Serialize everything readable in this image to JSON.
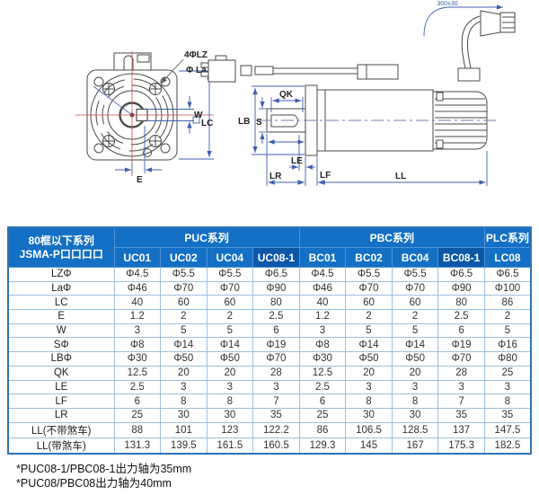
{
  "diagram": {
    "labels": {
      "bolt_holes": "4ΦLZ",
      "flange_dia": "Φ La",
      "w": "W",
      "lc": "LC",
      "e": "E",
      "qk": "QK",
      "lb": "LB",
      "s": "S",
      "le": "LE",
      "lr": "LR",
      "lf": "LF",
      "ll": "LL",
      "cable_length": "300±30"
    }
  },
  "table": {
    "corner": [
      "80框以下系列",
      "JSMA-P口口口口"
    ],
    "groups": [
      {
        "label": "PUC系列",
        "cols": [
          "UC01",
          "UC02",
          "UC04",
          "UC08-1"
        ]
      },
      {
        "label": "PBC系列",
        "cols": [
          "BC01",
          "BC02",
          "BC04",
          "BC08-1"
        ]
      },
      {
        "label": "PLC系列",
        "cols": [
          "LC08"
        ]
      }
    ],
    "highlight_col_indexes": [
      3,
      7
    ],
    "rows": [
      {
        "label": "LZΦ",
        "values": [
          "Φ4.5",
          "Φ5.5",
          "Φ5.5",
          "Φ6.5",
          "Φ4.5",
          "Φ5.5",
          "Φ5.5",
          "Φ6.5",
          "Φ6.5"
        ]
      },
      {
        "label": "LaΦ",
        "values": [
          "Φ46",
          "Φ70",
          "Φ70",
          "Φ90",
          "Φ46",
          "Φ70",
          "Φ70",
          "Φ90",
          "Φ100"
        ]
      },
      {
        "label": "LC",
        "values": [
          "40",
          "60",
          "60",
          "80",
          "40",
          "60",
          "60",
          "80",
          "86"
        ]
      },
      {
        "label": "E",
        "values": [
          "1.2",
          "2",
          "2",
          "2.5",
          "1.2",
          "2",
          "2",
          "2.5",
          "2"
        ]
      },
      {
        "label": "W",
        "values": [
          "3",
          "5",
          "5",
          "6",
          "3",
          "5",
          "5",
          "6",
          "5"
        ]
      },
      {
        "label": "SΦ",
        "values": [
          "Φ8",
          "Φ14",
          "Φ14",
          "Φ19",
          "Φ8",
          "Φ14",
          "Φ14",
          "Φ19",
          "Φ16"
        ]
      },
      {
        "label": "LBΦ",
        "values": [
          "Φ30",
          "Φ50",
          "Φ50",
          "Φ70",
          "Φ30",
          "Φ50",
          "Φ50",
          "Φ70",
          "Φ80"
        ]
      },
      {
        "label": "QK",
        "values": [
          "12.5",
          "20",
          "20",
          "28",
          "12.5",
          "20",
          "20",
          "28",
          "25"
        ]
      },
      {
        "label": "LE",
        "values": [
          "2.5",
          "3",
          "3",
          "3",
          "2.5",
          "3",
          "3",
          "3",
          "3"
        ]
      },
      {
        "label": "LF",
        "values": [
          "6",
          "8",
          "8",
          "7",
          "6",
          "8",
          "8",
          "7",
          "8"
        ]
      },
      {
        "label": "LR",
        "values": [
          "25",
          "30",
          "30",
          "35",
          "25",
          "30",
          "30",
          "35",
          "35"
        ]
      },
      {
        "label": "LL(不带煞车)",
        "values": [
          "88",
          "101",
          "123",
          "122.2",
          "86",
          "106.5",
          "128.5",
          "137",
          "147.5"
        ]
      },
      {
        "label": "LL(带煞车)",
        "values": [
          "131.3",
          "139.5",
          "161.5",
          "160.5",
          "129.3",
          "145",
          "167",
          "175.3",
          "182.5"
        ]
      }
    ]
  },
  "footnotes": [
    "*PUC08-1/PBC08-1出力轴为35mm",
    "*PUC08/PBC08出力轴为40mm"
  ],
  "colors": {
    "header_blue": "#1470c4",
    "header_dark_blue": "#0d57a7",
    "grid_blue": "#9cc0e4",
    "dimension_blue": "#3f5fae",
    "centerline_red": "#d04545"
  }
}
